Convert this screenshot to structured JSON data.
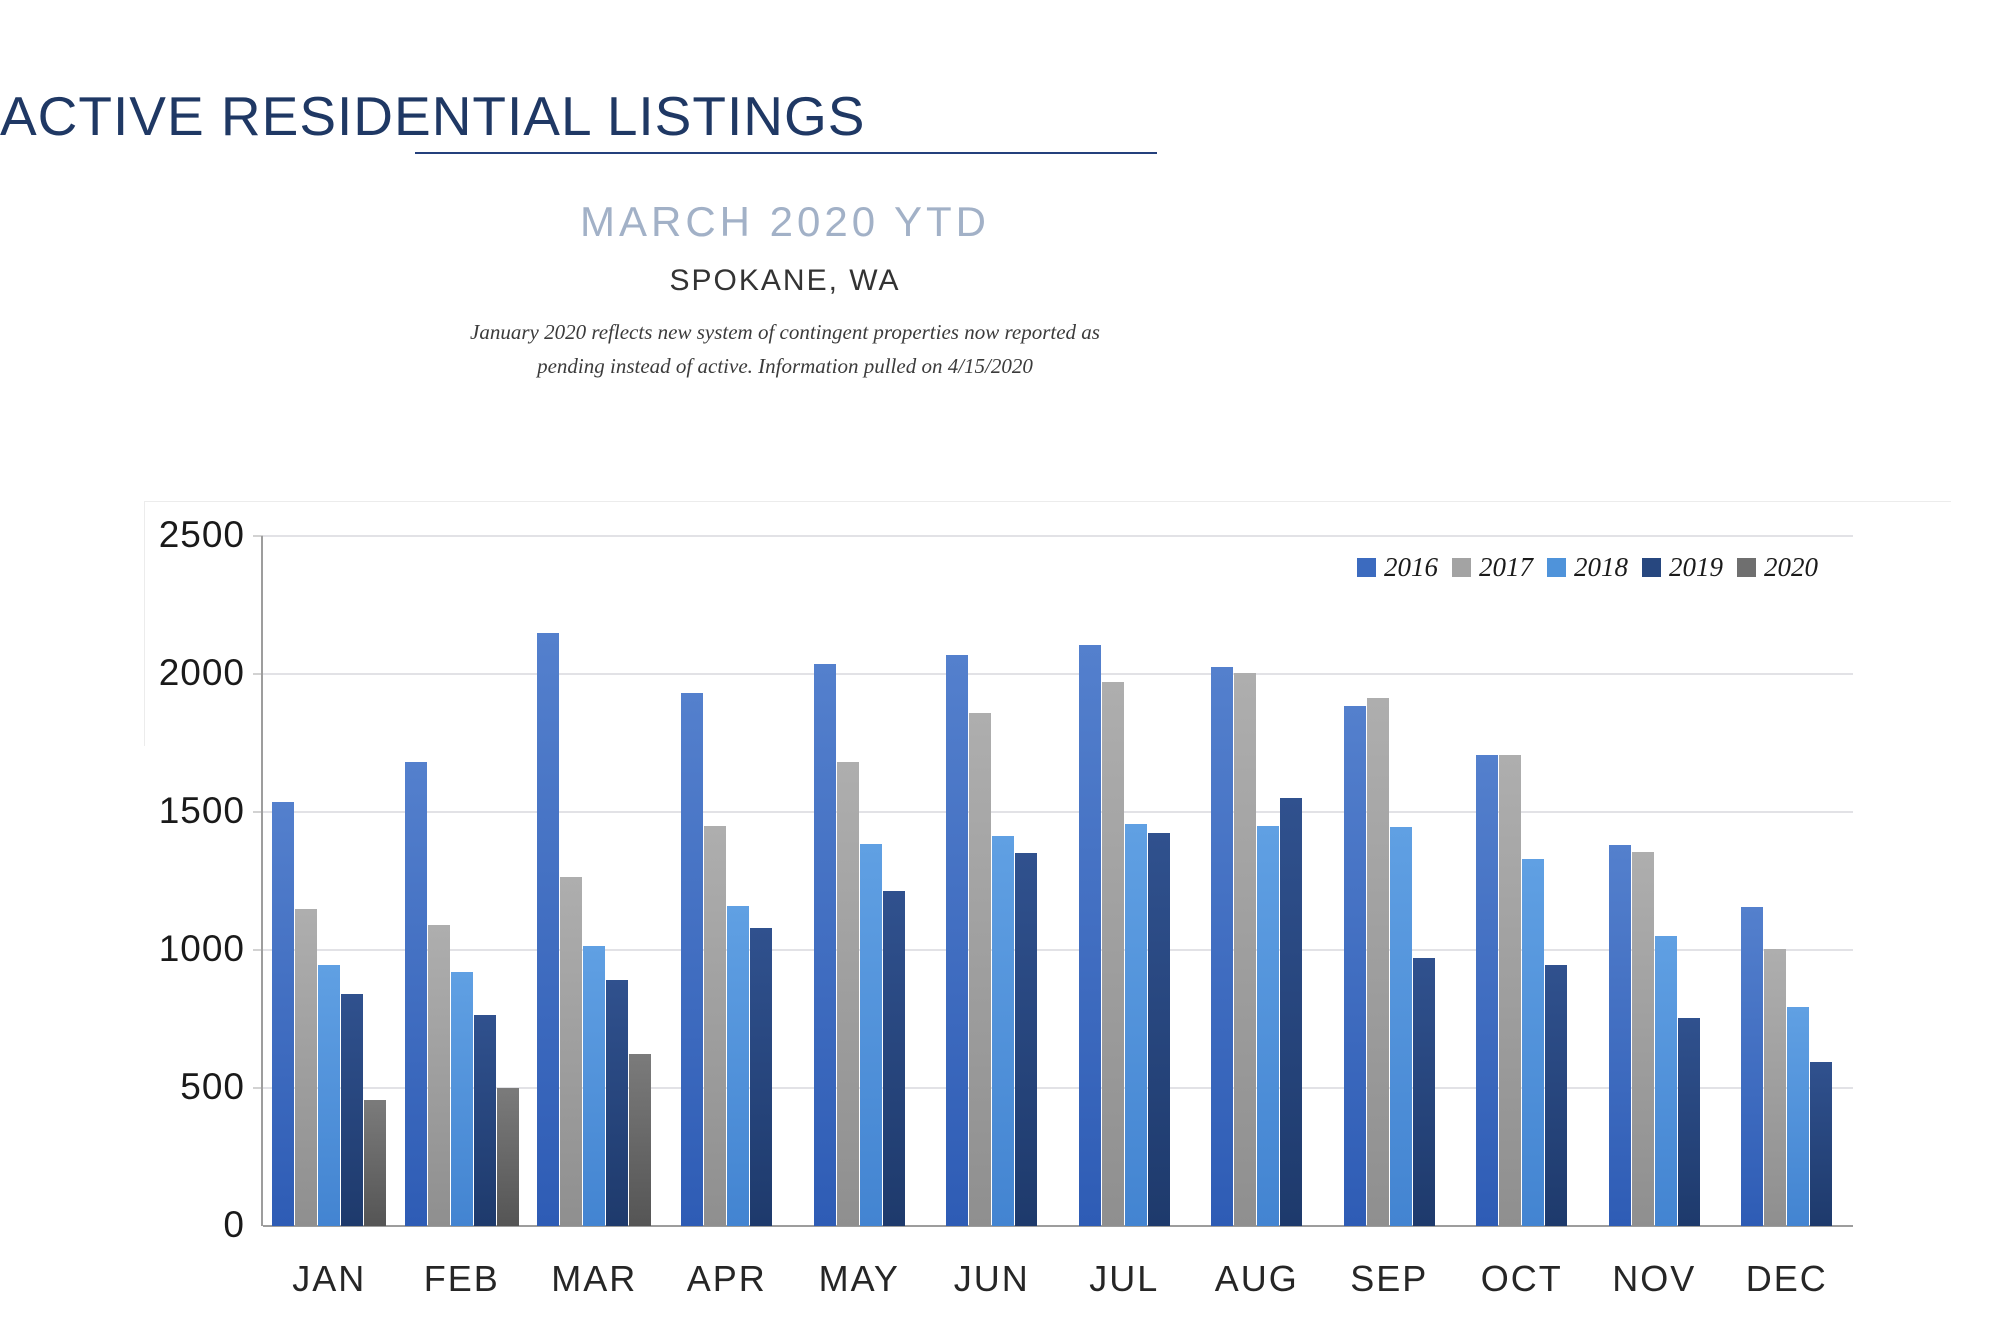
{
  "header": {
    "title": "ACTIVE RESIDENTIAL LISTINGS",
    "subtitle": "MARCH 2020 YTD",
    "location": "SPOKANE, WA",
    "note_line1": "January 2020 reflects new system of contingent properties now reported as",
    "note_line2": "pending instead of active.  Information pulled on 4/15/2020",
    "title_color": "#1f3864",
    "subtitle_color": "#a2b1c7"
  },
  "chart_data": {
    "type": "bar",
    "title": "Active Residential Listings, Spokane WA, March 2020 YTD",
    "categories": [
      "JAN",
      "FEB",
      "MAR",
      "APR",
      "MAY",
      "JUN",
      "JUL",
      "AUG",
      "SEP",
      "OCT",
      "NOV",
      "DEC"
    ],
    "series": [
      {
        "name": "2016",
        "color": "#3c6bbf",
        "gradient": [
          "#5480cd",
          "#2e5cb5"
        ],
        "values": [
          1535,
          1680,
          2150,
          1930,
          2035,
          2070,
          2105,
          2025,
          1885,
          1705,
          1380,
          1155
        ]
      },
      {
        "name": "2017",
        "color": "#a3a3a3",
        "gradient": [
          "#aeaeae",
          "#8f8f8f"
        ],
        "values": [
          1150,
          1090,
          1265,
          1450,
          1680,
          1860,
          1970,
          2005,
          1915,
          1705,
          1355,
          1005
        ]
      },
      {
        "name": "2018",
        "color": "#4f93da",
        "gradient": [
          "#60a0e3",
          "#4384d1"
        ],
        "values": [
          945,
          920,
          1015,
          1160,
          1385,
          1415,
          1455,
          1450,
          1445,
          1330,
          1050,
          795
        ]
      },
      {
        "name": "2019",
        "color": "#27477f",
        "gradient": [
          "#30518e",
          "#1e3a6c"
        ],
        "values": [
          840,
          765,
          890,
          1080,
          1215,
          1350,
          1425,
          1550,
          970,
          945,
          755,
          595
        ]
      },
      {
        "name": "2020",
        "color": "#6f6f6f",
        "gradient": [
          "#7b7b7b",
          "#555555"
        ],
        "values": [
          455,
          500,
          625,
          null,
          null,
          null,
          null,
          null,
          null,
          null,
          null,
          null
        ]
      }
    ],
    "xlabel": "",
    "ylabel": "",
    "ylim": [
      0,
      2500
    ],
    "yticks": [
      0,
      500,
      1000,
      1500,
      2000,
      2500
    ],
    "grid": true,
    "legend_position": "top-right"
  }
}
